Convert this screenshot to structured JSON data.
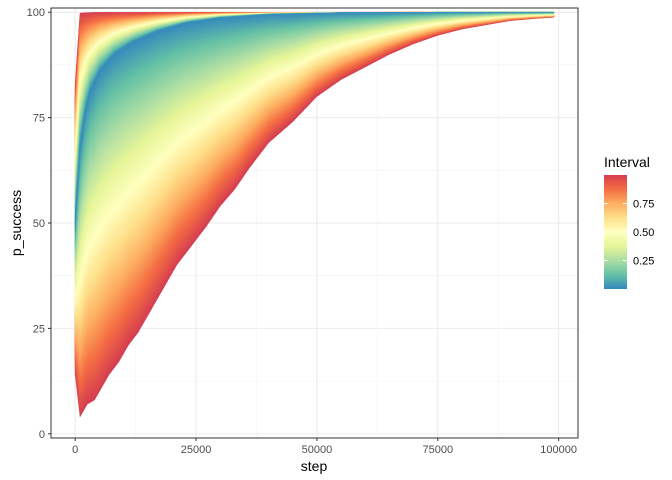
{
  "chart_data": {
    "type": "area",
    "xlabel": "step",
    "ylabel": "p_success",
    "xlim": [
      -5000,
      104000
    ],
    "ylim": [
      -1,
      101
    ],
    "x_ticks": [
      0,
      25000,
      50000,
      75000,
      100000
    ],
    "x_tick_labels": [
      "0",
      "25000",
      "50000",
      "75000",
      "100000"
    ],
    "y_ticks": [
      0,
      25,
      50,
      75,
      100
    ],
    "y_tick_labels": [
      "0",
      "25",
      "50",
      "75",
      "100"
    ],
    "grid": true,
    "legend": {
      "title": "Interval",
      "position": "right",
      "type": "colorbar",
      "range": [
        0,
        1
      ],
      "breaks": [
        0.25,
        0.5,
        0.75
      ],
      "labels": [
        "0.25",
        "0.50",
        "0.75"
      ],
      "colors": [
        "#3288BD",
        "#66C2A5",
        "#ABDDA4",
        "#E6F598",
        "#FFFFBF",
        "#FEE08B",
        "#FDAE61",
        "#F46D43",
        "#D53E4F"
      ]
    },
    "description_data": {
      "median": {
        "x": [
          0,
          1000,
          2000,
          3000,
          5000,
          8000,
          12000,
          17000,
          23000,
          30000,
          40000,
          55000,
          75000,
          99000
        ],
        "y": [
          50,
          68,
          76,
          81,
          86,
          90,
          93,
          95.5,
          97.5,
          98.7,
          99.5,
          99.9,
          100,
          100
        ]
      },
      "outer_upper": {
        "x": [
          0,
          1000,
          2000,
          5000,
          99000
        ],
        "y": [
          83,
          99.8,
          99.9,
          100,
          100
        ]
      },
      "outer_lower": {
        "x": [
          0,
          1000,
          1500,
          2500,
          4000,
          5500,
          7000,
          9000,
          11000,
          13000,
          15000,
          17000,
          19000,
          21000,
          23000,
          25000,
          27000,
          30000,
          33000,
          36000,
          40000,
          45000,
          50000,
          55000,
          60000,
          65000,
          70000,
          75000,
          80000,
          85000,
          90000,
          95000,
          99000
        ],
        "y": [
          14,
          4,
          5,
          7,
          8,
          11,
          14,
          17,
          21,
          24,
          28,
          32,
          36,
          40,
          43,
          46,
          49,
          54,
          58,
          63,
          69,
          74,
          80,
          84,
          87,
          90,
          92.5,
          94.5,
          96,
          97,
          98,
          98.5,
          98.8
        ]
      }
    }
  }
}
